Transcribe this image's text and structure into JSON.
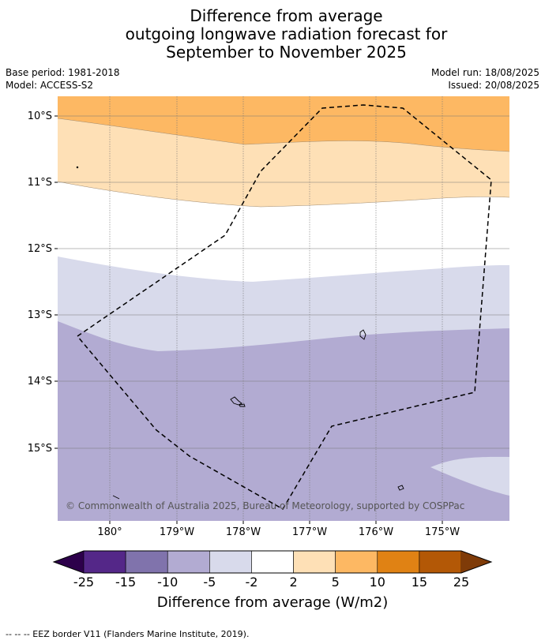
{
  "title": {
    "line1": "Difference from average",
    "line2": "outgoing longwave radiation forecast for",
    "line3": "September to November 2025"
  },
  "meta": {
    "base_period": "Base period: 1981-2018",
    "model": "Model: ACCESS-S2",
    "model_run": "Model run: 18/08/2025",
    "issued": "Issued: 20/08/2025"
  },
  "map": {
    "lat_labels": [
      "10°S",
      "11°S",
      "12°S",
      "13°S",
      "14°S",
      "15°S"
    ],
    "lon_labels": [
      "180°",
      "179°W",
      "178°W",
      "177°W",
      "176°W",
      "175°W"
    ],
    "copyright": "© Commonwealth of Australia 2025, Bureau of Meteorology, supported by COSPPac",
    "band_colors": {
      "strong_positive": "#fdb863",
      "weak_positive": "#fee0b6",
      "neutral": "#ffffff",
      "weak_negative": "#d8daeb",
      "moderate_negative": "#b2abd2"
    }
  },
  "colorbar": {
    "ticks": [
      "-25",
      "-15",
      "-10",
      "-5",
      "-2",
      "2",
      "5",
      "10",
      "15",
      "25"
    ],
    "colors": [
      "#542788",
      "#8073ac",
      "#b2abd2",
      "#d8daeb",
      "#ffffff",
      "#fee0b6",
      "#fdb863",
      "#e08214",
      "#b35806"
    ],
    "low_extend_color": "#2d004b",
    "high_extend_color": "#7f3b08",
    "title": "Difference from average (W/m2)"
  },
  "footer": "--  --  -- EEZ border V11 (Flanders Marine Institute, 2019)."
}
